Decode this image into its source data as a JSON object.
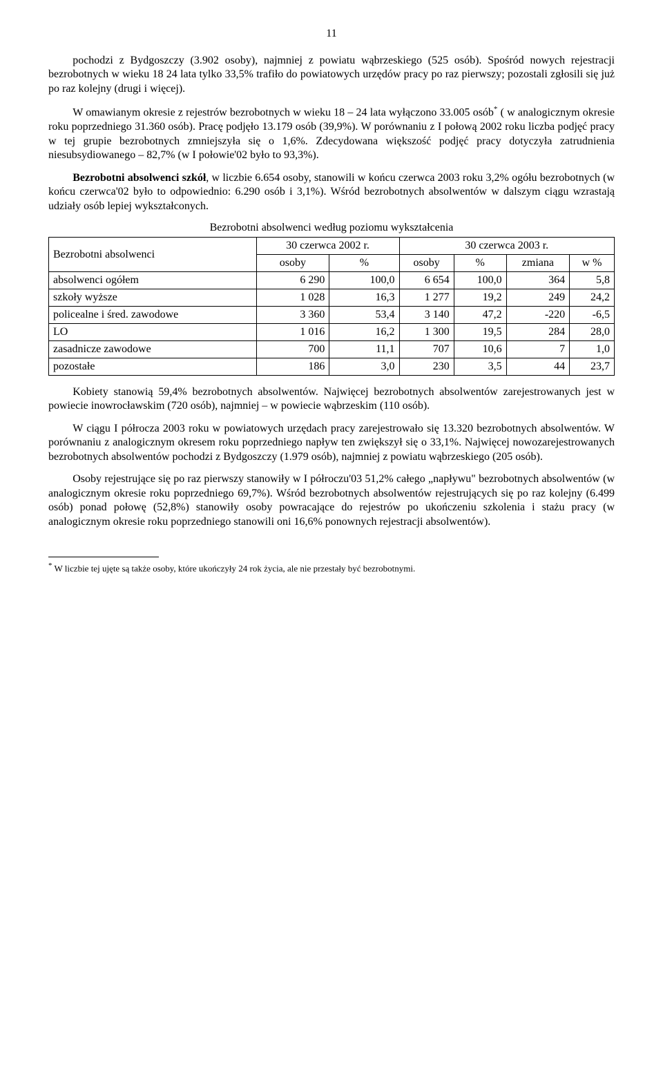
{
  "pageNumber": "11",
  "paragraphs": {
    "p1": "pochodzi z Bydgoszczy (3.902 osoby), najmniej z powiatu wąbrzeskiego (525 osób). Spośród nowych rejestracji bezrobotnych w wieku 18 24 lata tylko 33,5% trafiło do powiatowych urzędów pracy po raz pierwszy; pozostali zgłosili się już po raz kolejny (drugi i więcej).",
    "p2_a": "W omawianym okresie z rejestrów bezrobotnych w wieku 18 – 24 lata wyłączono 33.005 osób",
    "p2_sup": "*",
    "p2_b": " ( w analogicznym okresie roku poprzedniego 31.360 osób). Pracę podjęło 13.179 osób (39,9%). W porównaniu z I połową 2002 roku liczba podjęć pracy w tej grupie bezrobotnych zmniejszyła się o 1,6%. Zdecydowana większość podjęć pracy dotyczyła zatrudnienia niesubsydiowanego – 82,7% (w I połowie'02 było to 93,3%).",
    "p3_bold": "Bezrobotni absolwenci szkół",
    "p3_b": ", w liczbie 6.654 osoby, stanowili w końcu czerwca 2003 roku 3,2% ogółu bezrobotnych (w końcu czerwca'02 było to odpowiednio: 6.290 osób i 3,1%). Wśród bezrobotnych absolwentów w dalszym ciągu wzrastają udziały osób lepiej wykształconych.",
    "p4": "Kobiety stanowią 59,4% bezrobotnych absolwentów. Najwięcej bezrobotnych absolwentów zarejestrowanych jest w powiecie inowrocławskim (720 osób), najmniej – w powiecie wąbrzeskim (110 osób).",
    "p5": "W ciągu I półrocza 2003 roku w powiatowych urzędach pracy zarejestrowało się 13.320 bezrobotnych absolwentów. W porównaniu z analogicznym okresem roku poprzedniego napływ ten zwiększył się o 33,1%. Najwięcej nowozarejestrowanych bezrobotnych absolwentów pochodzi z Bydgoszczy (1.979 osób), najmniej z powiatu wąbrzeskiego (205 osób).",
    "p6": "Osoby rejestrujące się po raz pierwszy stanowiły w I półroczu'03 51,2% całego „napływu\" bezrobotnych absolwentów (w analogicznym okresie roku poprzedniego 69,7%). Wśród bezrobotnych absolwentów rejestrujących się po raz kolejny (6.499 osób) ponad połowę (52,8%) stanowiły osoby powracające do rejestrów po ukończeniu szkolenia i stażu pracy (w analogicznym okresie roku poprzedniego stanowili oni 16,6% ponownych rejestracji absolwentów)."
  },
  "table": {
    "title": "Bezrobotni absolwenci według poziomu wykształcenia",
    "header": {
      "rowLabel": "Bezrobotni absolwenci",
      "period1": "30 czerwca 2002 r.",
      "period2": "30 czerwca 2003 r.",
      "col_osoby": "osoby",
      "col_pct": "%",
      "col_zmiana": "zmiana",
      "col_wpct": "w %"
    },
    "rows": [
      {
        "label": "absolwenci ogółem",
        "o1": "6 290",
        "p1": "100,0",
        "o2": "6 654",
        "p2": "100,0",
        "z": "364",
        "w": "5,8"
      },
      {
        "label": "szkoły wyższe",
        "o1": "1 028",
        "p1": "16,3",
        "o2": "1 277",
        "p2": "19,2",
        "z": "249",
        "w": "24,2"
      },
      {
        "label": "policealne i śred. zawodowe",
        "o1": "3 360",
        "p1": "53,4",
        "o2": "3 140",
        "p2": "47,2",
        "z": "-220",
        "w": "-6,5"
      },
      {
        "label": "LO",
        "o1": "1 016",
        "p1": "16,2",
        "o2": "1 300",
        "p2": "19,5",
        "z": "284",
        "w": "28,0"
      },
      {
        "label": "zasadnicze zawodowe",
        "o1": "700",
        "p1": "11,1",
        "o2": "707",
        "p2": "10,6",
        "z": "7",
        "w": "1,0"
      },
      {
        "label": "pozostałe",
        "o1": "186",
        "p1": "3,0",
        "o2": "230",
        "p2": "3,5",
        "z": "44",
        "w": "23,7"
      }
    ]
  },
  "footnote": {
    "marker": "*",
    "text": " W liczbie tej ujęte są także osoby, które ukończyły 24 rok życia, ale nie przestały być bezrobotnymi."
  }
}
